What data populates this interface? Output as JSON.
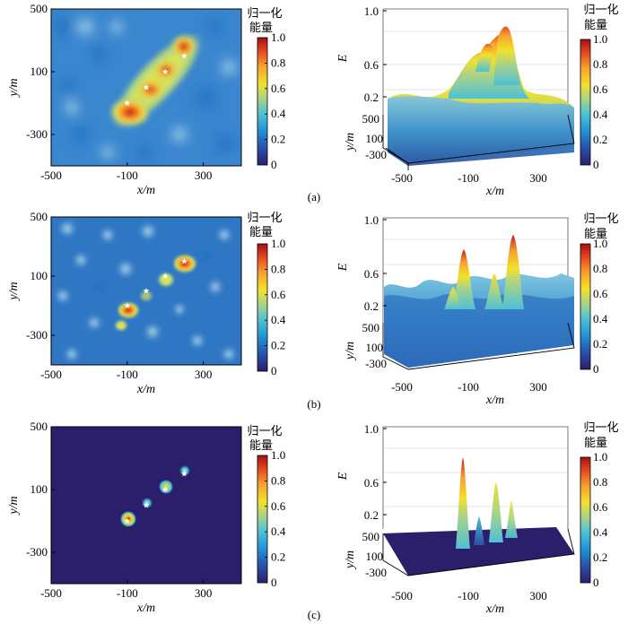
{
  "panel_labels": [
    "(a)",
    "(b)",
    "(c)"
  ],
  "colorbar": {
    "title_line1": "归一化",
    "title_line2": "能量",
    "ticks": [
      "1.0",
      "0.8",
      "0.6",
      "0.4",
      "0.2",
      "0"
    ],
    "colormap": [
      "#2b1f6b",
      "#2a4ea8",
      "#1e8fd6",
      "#4cc1d6",
      "#a8d38a",
      "#f2e12a",
      "#f6a230",
      "#e84a1f",
      "#a50f15"
    ]
  },
  "axes_2d": {
    "xlabel": "x/m",
    "ylabel": "y/m",
    "xticks": [
      "-500",
      "-100",
      "300"
    ],
    "yticks": [
      "500",
      "100",
      "-300"
    ]
  },
  "axes_3d": {
    "zlabel": "E",
    "ylabel": "y/m",
    "xlabel": "x/m",
    "zticks": [
      "1.0",
      "0.6",
      "0.2"
    ],
    "xticks": [
      "-500",
      "-100",
      "300"
    ],
    "yticks": [
      "500",
      "100",
      "-300"
    ]
  },
  "chart_data": [
    {
      "type": "heatmap",
      "panel": "(a)",
      "view": "2d",
      "xlabel": "x/m",
      "ylabel": "y/m",
      "xlim": [
        -500,
        500
      ],
      "ylim": [
        -500,
        500
      ],
      "colorbar_range": [
        0,
        1
      ],
      "source_markers": [
        {
          "x": -100,
          "y": -100
        },
        {
          "x": 0,
          "y": 0
        },
        {
          "x": 100,
          "y": 100
        },
        {
          "x": 200,
          "y": 200
        }
      ],
      "peak_ridge": {
        "from": {
          "x": -130,
          "y": -130
        },
        "to": {
          "x": 210,
          "y": 250
        },
        "max": 1.0
      }
    },
    {
      "type": "surface",
      "panel": "(a)",
      "view": "3d",
      "zlabel": "E",
      "xlabel": "x/m",
      "ylabel": "y/m",
      "zlim": [
        0,
        1.0
      ],
      "description_values": {
        "peak_E": 1.0,
        "background_E": 0.3
      }
    },
    {
      "type": "heatmap",
      "panel": "(b)",
      "view": "2d",
      "xlabel": "x/m",
      "ylabel": "y/m",
      "xlim": [
        -500,
        500
      ],
      "ylim": [
        -500,
        500
      ],
      "colorbar_range": [
        0,
        1
      ],
      "source_markers": [
        {
          "x": -100,
          "y": -100
        },
        {
          "x": 0,
          "y": 0
        },
        {
          "x": 100,
          "y": 100
        },
        {
          "x": 200,
          "y": 200
        }
      ],
      "peaks": [
        {
          "x": -100,
          "y": -100,
          "E": 1.0
        },
        {
          "x": 200,
          "y": 200,
          "E": 1.0
        },
        {
          "x": 100,
          "y": 100,
          "E": 0.6
        },
        {
          "x": 0,
          "y": 0,
          "E": 0.5
        }
      ]
    },
    {
      "type": "surface",
      "panel": "(b)",
      "view": "3d",
      "zlabel": "E",
      "xlabel": "x/m",
      "ylabel": "y/m",
      "zlim": [
        0,
        1.0
      ],
      "peaks_E": [
        1.0,
        1.0,
        0.6,
        0.5
      ]
    },
    {
      "type": "heatmap",
      "panel": "(c)",
      "view": "2d",
      "xlabel": "x/m",
      "ylabel": "y/m",
      "xlim": [
        -500,
        500
      ],
      "ylim": [
        -500,
        500
      ],
      "colorbar_range": [
        0,
        1
      ],
      "source_markers": [
        {
          "x": -100,
          "y": -100
        },
        {
          "x": 0,
          "y": 0
        },
        {
          "x": 100,
          "y": 100
        },
        {
          "x": 200,
          "y": 200
        }
      ],
      "peaks": [
        {
          "x": -100,
          "y": -100,
          "E": 1.0
        },
        {
          "x": 0,
          "y": 0,
          "E": 0.5
        },
        {
          "x": 100,
          "y": 100,
          "E": 0.75
        },
        {
          "x": 200,
          "y": 200,
          "E": 0.5
        }
      ]
    },
    {
      "type": "surface",
      "panel": "(c)",
      "view": "3d",
      "zlabel": "E",
      "xlabel": "x/m",
      "ylabel": "y/m",
      "zlim": [
        0,
        1.0
      ],
      "peaks_E": [
        1.0,
        0.5,
        0.75,
        0.5
      ]
    }
  ]
}
